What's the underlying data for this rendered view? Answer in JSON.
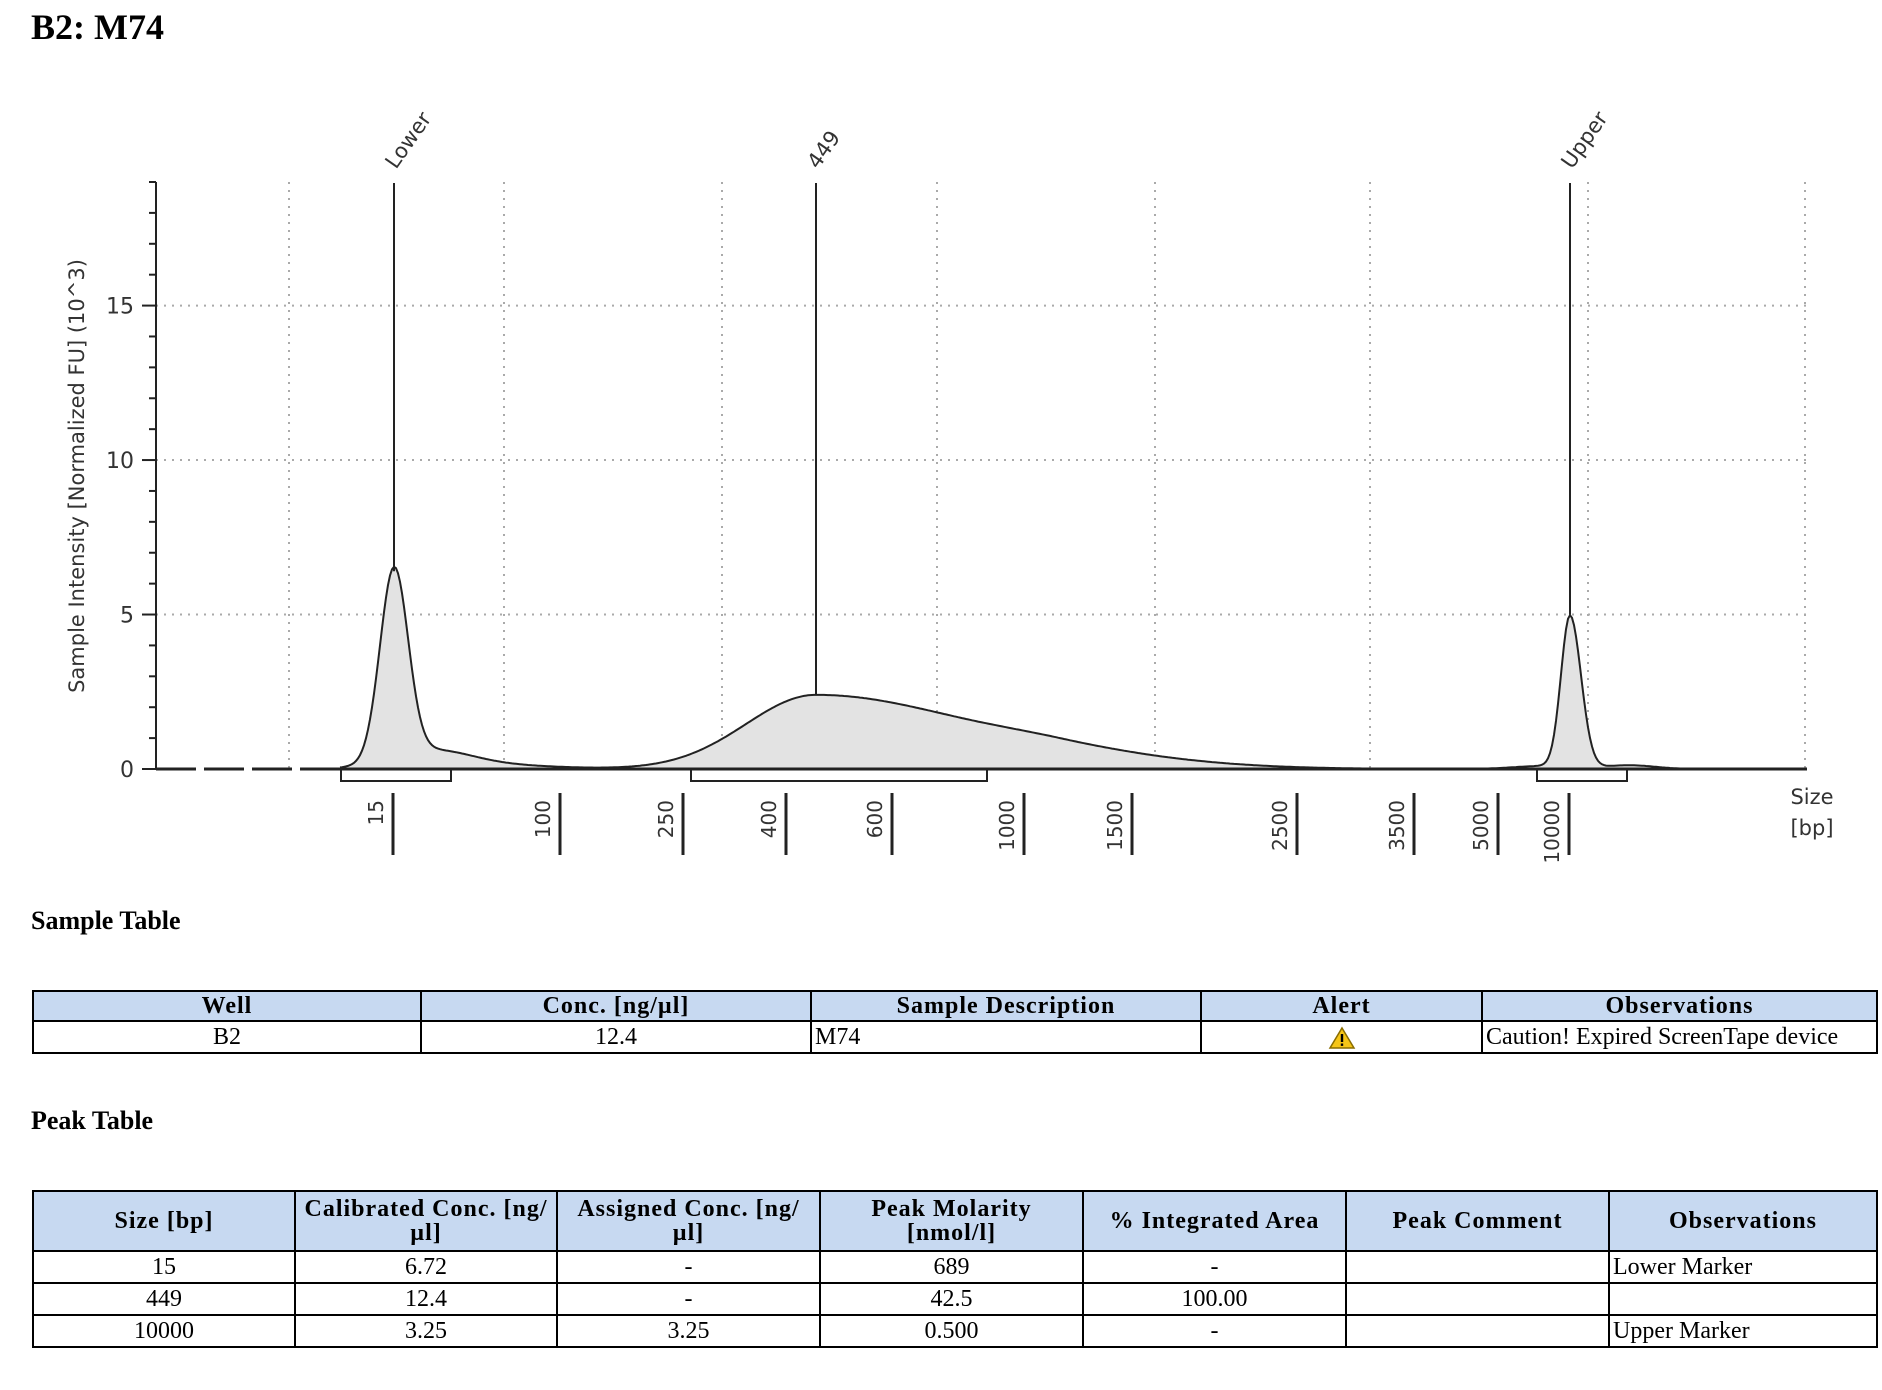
{
  "title": "B2: M74",
  "chart_data": {
    "type": "area",
    "ylabel": "Sample Intensity [Normalized FU] (10^3)",
    "xlabel": "Size\n[bp]",
    "xlabel_lines": [
      "Size",
      "[bp]"
    ],
    "ylim": [
      0,
      19
    ],
    "yticks": [
      0,
      5,
      10,
      15
    ],
    "xtick_labels": [
      "15",
      "100",
      "250",
      "400",
      "600",
      "1000",
      "1500",
      "2500",
      "3500",
      "5000",
      "10000"
    ],
    "peaks": [
      {
        "label": "Lower",
        "size": 15,
        "height": 6.4
      },
      {
        "label": "449",
        "size": 449,
        "height": 2.4
      },
      {
        "label": "Upper",
        "size": 10000,
        "height": 5.0
      }
    ],
    "grid": true,
    "colors": {
      "fill": "#e3e3e3",
      "line": "#222222",
      "grid": "#aaaaaa"
    }
  },
  "sample_table": {
    "title": "Sample Table",
    "headers": [
      "Well",
      "Conc. [ng/µl]",
      "Sample Description",
      "Alert",
      "Observations"
    ],
    "rows": [
      [
        "B2",
        "12.4",
        "M74",
        "warning-icon",
        "Caution! Expired ScreenTape device"
      ]
    ]
  },
  "peak_table": {
    "title": "Peak Table",
    "headers": [
      "Size [bp]",
      "Calibrated Conc. [ng/µl]",
      "Assigned Conc. [ng/µl]",
      "Peak Molarity [nmol/l]",
      "% Integrated Area",
      "Peak Comment",
      "Observations"
    ],
    "rows": [
      [
        "15",
        "6.72",
        "-",
        "689",
        "-",
        "",
        "Lower Marker"
      ],
      [
        "449",
        "12.4",
        "-",
        "42.5",
        "100.00",
        "",
        ""
      ],
      [
        "10000",
        "3.25",
        "3.25",
        "0.500",
        "-",
        "",
        "Upper Marker"
      ]
    ]
  }
}
